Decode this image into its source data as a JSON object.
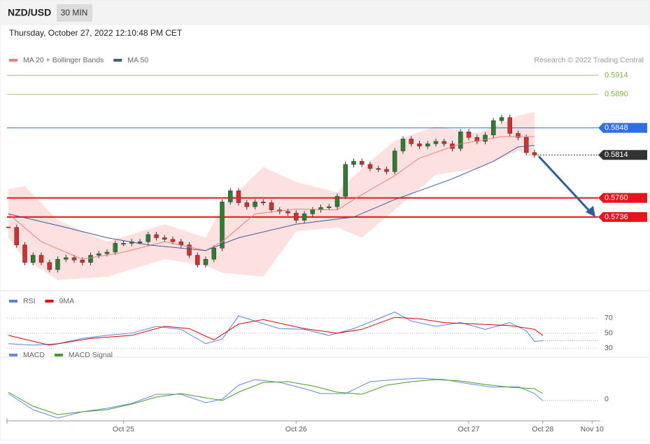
{
  "header": {
    "symbol": "NZD/USD",
    "interval": "30 MIN",
    "datetime": "Thursday, October 27, 2022 12:10:48 PM CET"
  },
  "credit": "Research © 2022 Trading Central",
  "chart_data": [
    {
      "type": "candlestick",
      "xlim": [
        0,
        72
      ],
      "ylim": [
        0.5648,
        0.5925
      ],
      "up_color": "#2f7d32",
      "down_color": "#d32f2f",
      "closes": [
        0.5723,
        0.5701,
        0.5679,
        0.5688,
        0.5679,
        0.567,
        0.5683,
        0.5685,
        0.5682,
        0.5679,
        0.5688,
        0.569,
        0.5692,
        0.5703,
        0.5703,
        0.5705,
        0.5705,
        0.5714,
        0.571,
        0.5708,
        0.5705,
        0.5701,
        0.5688,
        0.5676,
        0.5683,
        0.5697,
        0.5755,
        0.5769,
        0.5754,
        0.5749,
        0.5755,
        0.5754,
        0.5745,
        0.5743,
        0.5741,
        0.5732,
        0.574,
        0.5745,
        0.5748,
        0.5749,
        0.5762,
        0.5802,
        0.5806,
        0.5802,
        0.5797,
        0.5796,
        0.5793,
        0.5819,
        0.5834,
        0.5828,
        0.5825,
        0.5828,
        0.5831,
        0.5828,
        0.5822,
        0.5843,
        0.5836,
        0.5831,
        0.5839,
        0.5857,
        0.5861,
        0.5841,
        0.5836,
        0.5817,
        0.5814
      ],
      "series": [
        {
          "name": "MA 20 + Bollinger Bands",
          "color": "#f07c7c",
          "x": [
            0,
            4,
            9,
            14,
            19,
            24,
            26,
            30,
            35,
            40,
            42,
            47,
            50,
            55,
            60,
            64
          ],
          "values": [
            0.574,
            0.5705,
            0.5683,
            0.5692,
            0.5705,
            0.5694,
            0.5705,
            0.574,
            0.5746,
            0.5745,
            0.5758,
            0.5788,
            0.581,
            0.5828,
            0.5837,
            0.5837
          ],
          "bands": {
            "color": "#fde1e1",
            "x": [
              0,
              2,
              6,
              12,
              19,
              24,
              26,
              31,
              35,
              40,
              43,
              47,
              52,
              57,
              62,
              64
            ],
            "upper": [
              0.5771,
              0.5775,
              0.5732,
              0.5705,
              0.5727,
              0.571,
              0.5749,
              0.5799,
              0.578,
              0.5767,
              0.5797,
              0.5832,
              0.585,
              0.5841,
              0.5863,
              0.5868
            ],
            "lower": [
              0.571,
              0.5683,
              0.5657,
              0.5661,
              0.5683,
              0.5675,
              0.5666,
              0.5661,
              0.5718,
              0.5723,
              0.571,
              0.5745,
              0.5789,
              0.5797,
              0.5819,
              0.581
            ]
          }
        },
        {
          "name": "MA 50",
          "color": "#3d5a99",
          "x": [
            0,
            7,
            12,
            17,
            24,
            28,
            35,
            42,
            47,
            54,
            59,
            62,
            64
          ],
          "values": [
            0.574,
            0.5723,
            0.571,
            0.5701,
            0.5694,
            0.571,
            0.5727,
            0.5736,
            0.5758,
            0.5784,
            0.5806,
            0.5824,
            0.5826
          ]
        }
      ],
      "levels": [
        {
          "value": 0.5914,
          "color": "#7cb342",
          "box": false
        },
        {
          "value": {
            "value": 0.589,
            "label": "0.5890"
          },
          "color": "#7cb342",
          "box": false
        },
        {
          "value": 0.5848,
          "color": "#2f6fe0",
          "box": true
        },
        {
          "value": 0.5814,
          "color": "#333333",
          "box": true,
          "dashed": true
        },
        {
          "value": {
            "value": 0.576,
            "label": "0.5760"
          },
          "color": "#e8141c",
          "box": true,
          "thick": true
        },
        {
          "value": 0.5736,
          "color": "#e8141c",
          "box": true,
          "thick": true
        }
      ]
    },
    {
      "type": "line",
      "xlim": [
        0,
        72
      ],
      "ylim": [
        20,
        85
      ],
      "yticks": [
        30,
        50,
        70
      ],
      "grid": true,
      "series": [
        {
          "name": "RSI",
          "color": "#5a7fdc",
          "x": [
            0,
            3,
            6,
            9,
            12,
            15,
            18,
            21,
            24,
            26,
            28,
            30,
            33,
            36,
            39,
            42,
            45,
            47,
            49,
            52,
            55,
            58,
            61,
            63,
            64,
            65
          ],
          "values": [
            36,
            34,
            36,
            43,
            47,
            50,
            59,
            55,
            36,
            42,
            73,
            66,
            56,
            55,
            47,
            56,
            69,
            78,
            66,
            59,
            64,
            55,
            64,
            53,
            39,
            40
          ]
        },
        {
          "name": "9MA",
          "color": "#e00000",
          "x": [
            0,
            5,
            10,
            15,
            19,
            22,
            25,
            28,
            31,
            36,
            40,
            43,
            47,
            50,
            53,
            57,
            61,
            64,
            65
          ],
          "values": [
            47,
            34,
            43,
            47,
            59,
            56,
            41,
            62,
            68,
            56,
            50,
            55,
            71,
            69,
            64,
            62,
            60,
            55,
            47
          ]
        }
      ]
    },
    {
      "type": "line",
      "xlim": [
        0,
        72
      ],
      "ylim": [
        -30,
        55
      ],
      "yticks": [
        0
      ],
      "xticks": [
        {
          "value": 14,
          "label": "Oct 25"
        },
        {
          "value": 35,
          "label": "Oct 26"
        },
        {
          "value": 56,
          "label": "Oct 27"
        },
        {
          "value": 65,
          "label": "Oct 28"
        },
        {
          "value": 71,
          "label": "Nov 10"
        }
      ],
      "series": [
        {
          "name": "MACD",
          "color": "#6688dd",
          "x": [
            0,
            3,
            6,
            9,
            12,
            15,
            18,
            21,
            24,
            26,
            28,
            30,
            33,
            36,
            38,
            41,
            44,
            47,
            50,
            53,
            56,
            59,
            62,
            64,
            65
          ],
          "values": [
            8,
            -15,
            -27,
            -18,
            -13,
            -6,
            7,
            7,
            -5,
            0,
            20,
            28,
            24,
            15,
            8,
            8,
            25,
            28,
            30,
            28,
            22,
            17,
            18,
            8,
            -2
          ]
        },
        {
          "name": "MACD Signal",
          "color": "#4a9a2a",
          "x": [
            0,
            3,
            6,
            9,
            12,
            15,
            18,
            21,
            24,
            26,
            28,
            31,
            34,
            37,
            40,
            43,
            46,
            49,
            52,
            55,
            58,
            61,
            64,
            65
          ],
          "values": [
            10,
            -10,
            -22,
            -18,
            -15,
            -7,
            3,
            8,
            2,
            -2,
            10,
            24,
            25,
            19,
            10,
            7,
            20,
            25,
            28,
            26,
            21,
            17,
            15,
            8
          ]
        }
      ]
    }
  ]
}
